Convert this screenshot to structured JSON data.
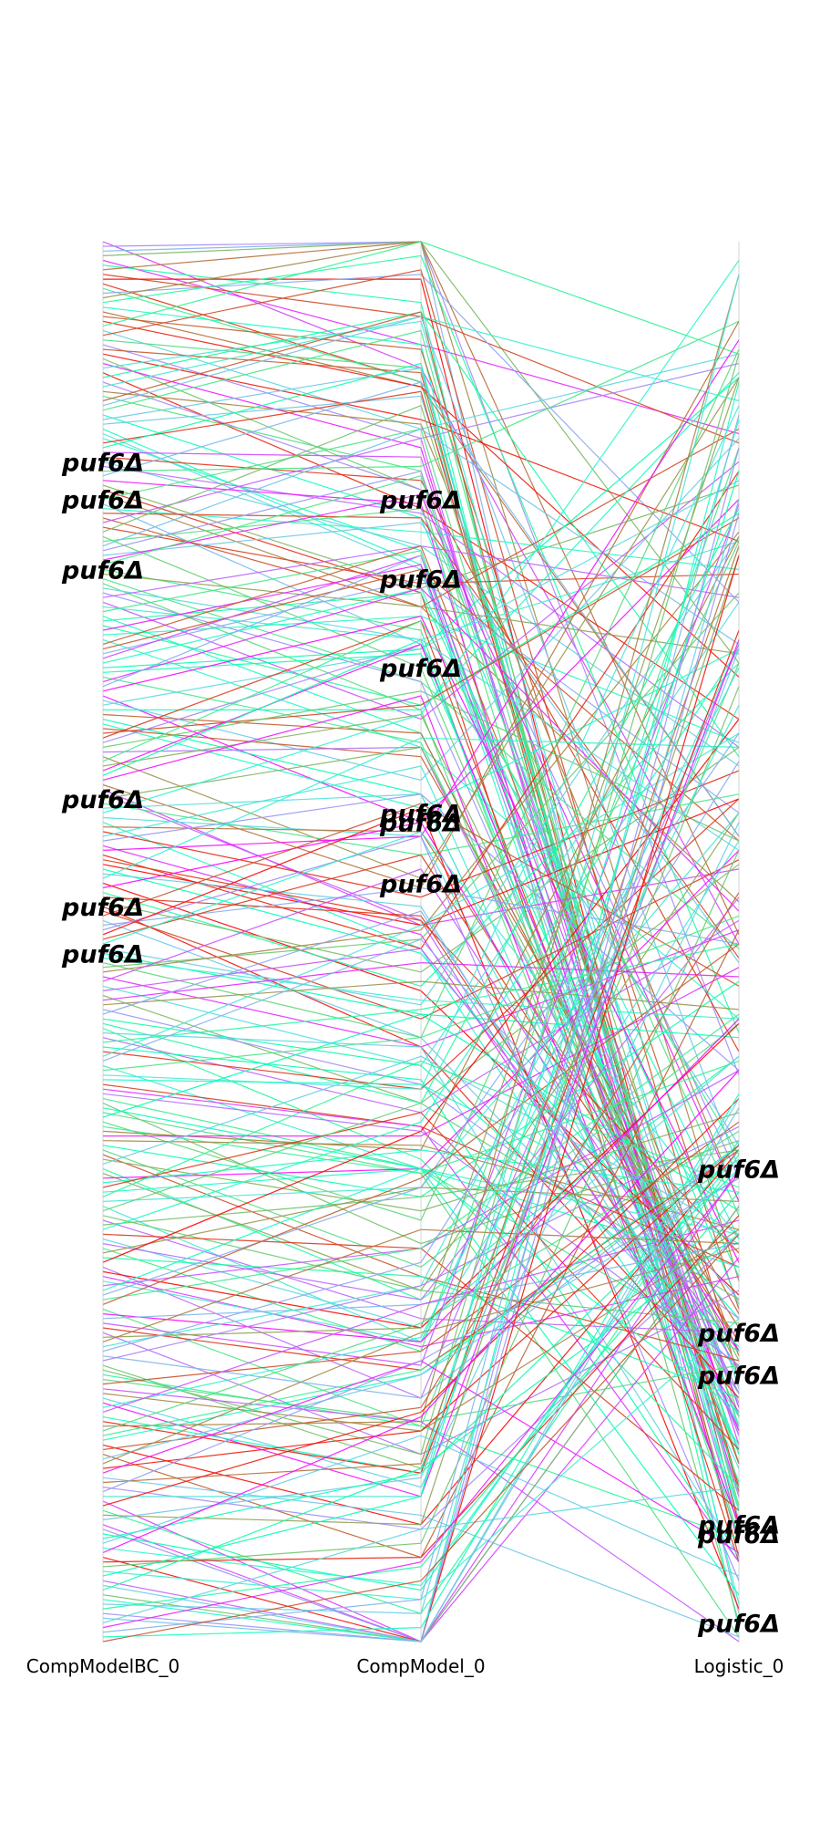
{
  "chart_data": {
    "type": "parallel-coordinates",
    "axes": [
      "CompModelBC_0",
      "CompModel_0",
      "Logistic_0"
    ],
    "rank_range": [
      1,
      300
    ],
    "colormap": "rainbow",
    "grid": false,
    "highlight_label": "puf6Δ",
    "highlighted_ranks": [
      {
        "CompModelBC_0": 48,
        "CompModel_0": 56,
        "Logistic_0": 296
      },
      {
        "CompModelBC_0": 56,
        "CompModel_0": 73,
        "Logistic_0": 277
      },
      {
        "CompModelBC_0": 71,
        "CompModel_0": 92,
        "Logistic_0": 275
      },
      {
        "CompModelBC_0": 120,
        "CompModel_0": 123,
        "Logistic_0": 243
      },
      {
        "CompModelBC_0": 143,
        "CompModel_0": 125,
        "Logistic_0": 234
      },
      {
        "CompModelBC_0": 153,
        "CompModel_0": 138,
        "Logistic_0": 199
      }
    ]
  }
}
